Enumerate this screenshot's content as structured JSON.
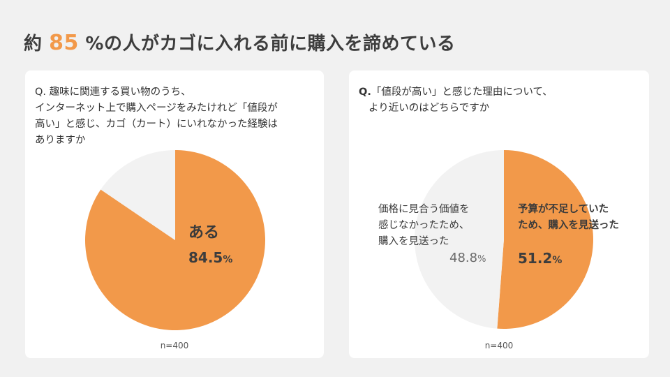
{
  "headline": {
    "prefix": "約",
    "highlight": "85",
    "suffix": "%の人がカゴに入れる前に購入を諦めている"
  },
  "colors": {
    "accent": "#f2994a",
    "background_slice": "#f2f2f2"
  },
  "chart_data": [
    {
      "type": "pie",
      "question_prefix": "Q.",
      "question": "趣味に関連する買い物のうち、インターネット上で購入ページをみたけれど「値段が高い」と感じ、カゴ（カート）にいれなかった経験はありますか",
      "question_lines": [
        "Q. 趣味に関連する買い物のうち、",
        "インターネット上で購入ページをみたけれど「値段が",
        "高い」と感じ、カゴ（カート）にいれなかった経験は",
        "ありますか"
      ],
      "slices": [
        {
          "label": "ある",
          "value": 84.5,
          "unit": "%",
          "color": "#f2994a"
        },
        {
          "label": "",
          "value": 15.5,
          "unit": "%",
          "color": "#f2f2f2"
        }
      ],
      "slice_text": {
        "label": "ある",
        "value_text": "84.5",
        "unit": "%"
      },
      "n": "n=400"
    },
    {
      "type": "pie",
      "question_prefix": "Q.",
      "question_lines": [
        "「値段が高い」と感じた理由について、",
        "より近いのはどちらですか"
      ],
      "slices": [
        {
          "label": "予算が不足していたため、購入を見送った",
          "value": 51.2,
          "unit": "%",
          "color": "#f2994a"
        },
        {
          "label": "価格に見合う価値を感じなかったため、購入を見送った",
          "value": 48.8,
          "unit": "%",
          "color": "#f2f2f2"
        }
      ],
      "label_right_lines": [
        "予算が不足していた",
        "ため、購入を見送った"
      ],
      "label_left_lines": [
        "価格に見合う価値を",
        "感じなかったため、",
        "購入を見送った"
      ],
      "value_right": "51.2",
      "value_left": "48.8",
      "unit": "%",
      "n": "n=400"
    }
  ]
}
